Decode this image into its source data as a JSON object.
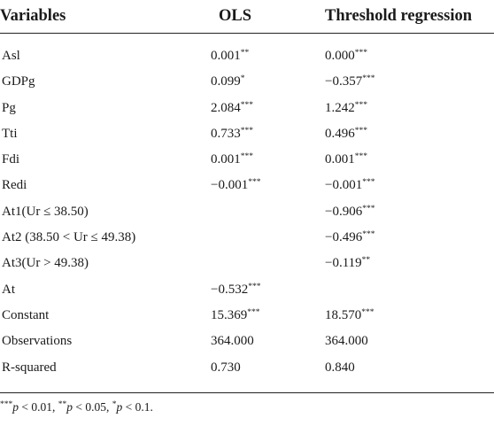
{
  "table": {
    "headers": {
      "variables": "Variables",
      "ols": "OLS",
      "threshold": "Threshold regression"
    },
    "rows": [
      {
        "label": "Asl",
        "ols": "0.001**",
        "threshold": "0.000***"
      },
      {
        "label": "GDPg",
        "ols": "0.099*",
        "threshold": "−0.357***"
      },
      {
        "label": "Pg",
        "ols": "2.084***",
        "threshold": "1.242***"
      },
      {
        "label": "Tti",
        "ols": "0.733***",
        "threshold": "0.496***"
      },
      {
        "label": "Fdi",
        "ols": "0.001***",
        "threshold": "0.001***"
      },
      {
        "label": "Redi",
        "ols": "−0.001***",
        "threshold": "−0.001***"
      },
      {
        "label": "At1(Ur ≤ 38.50)",
        "ols": "",
        "threshold": "−0.906***"
      },
      {
        "label": "At2 (38.50 < Ur ≤ 49.38)",
        "ols": "",
        "threshold": "−0.496***"
      },
      {
        "label": "At3(Ur > 49.38)",
        "ols": "",
        "threshold": "−0.119**"
      },
      {
        "label": "At",
        "ols": "−0.532***",
        "threshold": ""
      },
      {
        "label": "Constant",
        "ols": "15.369***",
        "threshold": "18.570***"
      },
      {
        "label": "Observations",
        "ols": "364.000",
        "threshold": "364.000"
      },
      {
        "label": "R-squared",
        "ols": "0.730",
        "threshold": "0.840"
      }
    ]
  },
  "footnote": {
    "stars1": "***",
    "p1": "p",
    "rel1": " < 0.01, ",
    "stars2": "**",
    "p2": "p",
    "rel2": " < 0.05, ",
    "stars3": "*",
    "p3": "p",
    "rel3": " < 0.1."
  }
}
